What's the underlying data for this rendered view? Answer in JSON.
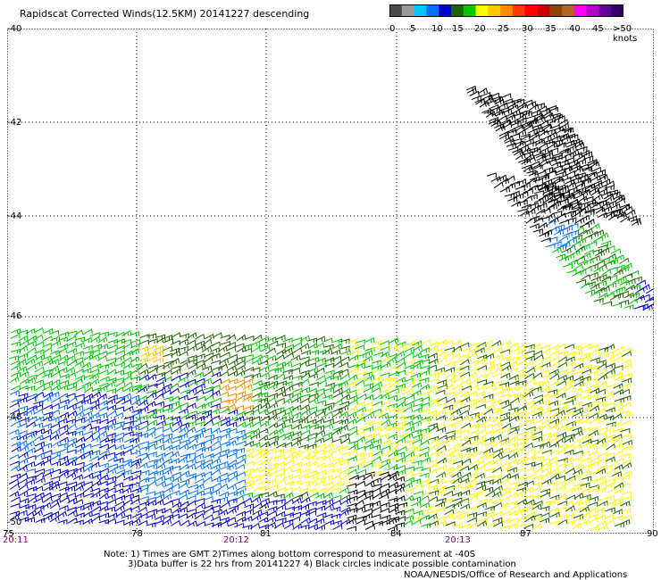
{
  "title": "Rapidscat Corrected Winds(12.5KM) 20141227 descending",
  "colorbar": {
    "colors": [
      "#4a4a4a",
      "#9a9a9a",
      "#00c8ff",
      "#0072ff",
      "#0000c8",
      "#1e6400",
      "#00c800",
      "#ffff00",
      "#ffc800",
      "#ff8c00",
      "#ff3c00",
      "#ff0000",
      "#c80000",
      "#8c4600",
      "#b46428",
      "#ff00ff",
      "#b400c8",
      "#6400a0",
      "#320064"
    ],
    "labels": [
      "0",
      "5",
      "10",
      "15",
      "20",
      "25",
      "30",
      "35",
      "40",
      "45",
      ">50 knots"
    ]
  },
  "chart_data": {
    "type": "map",
    "latitude_labels": [
      "-40",
      "-42",
      "-44",
      "-46",
      "-48",
      "-50"
    ],
    "longitude_labels": [
      "75",
      "78",
      "81",
      "84",
      "87",
      "90"
    ],
    "grid": true,
    "time_labels": [
      "20:11",
      "20:12",
      "20:13"
    ],
    "features": [
      "wind barbs along the descending swath, colored by speed (knots)"
    ]
  },
  "note_line1": "Note: 1) Times are GMT 2)Times along bottom correspond to measurement at -40S",
  "note_line2": "3)Data buffer is 22 hrs from 20141227 4) Black circles indicate possible contamination",
  "credit": "NOAA/NESDIS/Office of Research and Applications"
}
